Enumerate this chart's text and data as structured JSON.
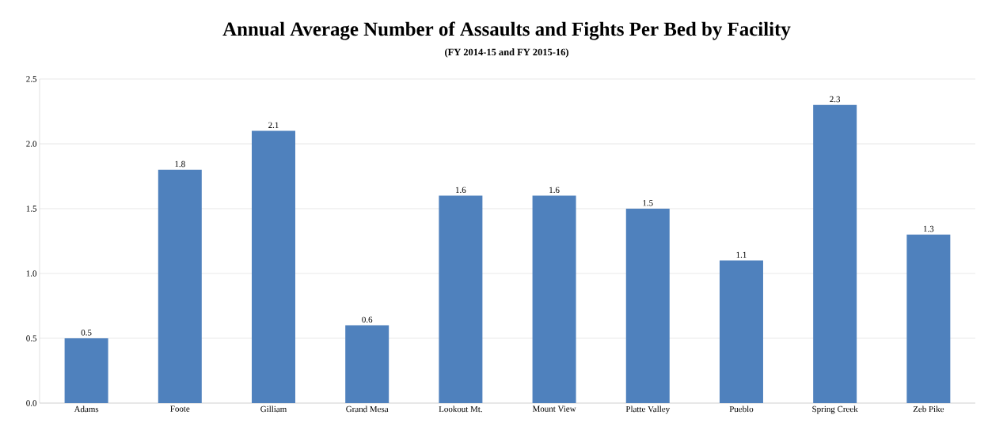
{
  "chart_data": {
    "type": "bar",
    "title": "Annual Average Number of Assaults and Fights Per Bed by Facility",
    "subtitle": "(FY 2014-15 and FY 2015-16)",
    "categories": [
      "Adams",
      "Foote",
      "Gilliam",
      "Grand Mesa",
      "Lookout Mt.",
      "Mount View",
      "Platte Valley",
      "Pueblo",
      "Spring Creek",
      "Zeb Pike"
    ],
    "values": [
      0.5,
      1.8,
      2.1,
      0.6,
      1.6,
      1.6,
      1.5,
      1.1,
      2.3,
      1.3
    ],
    "color": "#4f81bd",
    "data_labels": true,
    "grid": "y",
    "ylim": [
      0,
      2.5
    ],
    "yticks": [
      {
        "value": 0,
        "label": "0.0"
      },
      0.5,
      {
        "value": 1,
        "label": "1.0"
      },
      1.5,
      {
        "value": 2,
        "label": "2.0"
      },
      2.5
    ]
  }
}
